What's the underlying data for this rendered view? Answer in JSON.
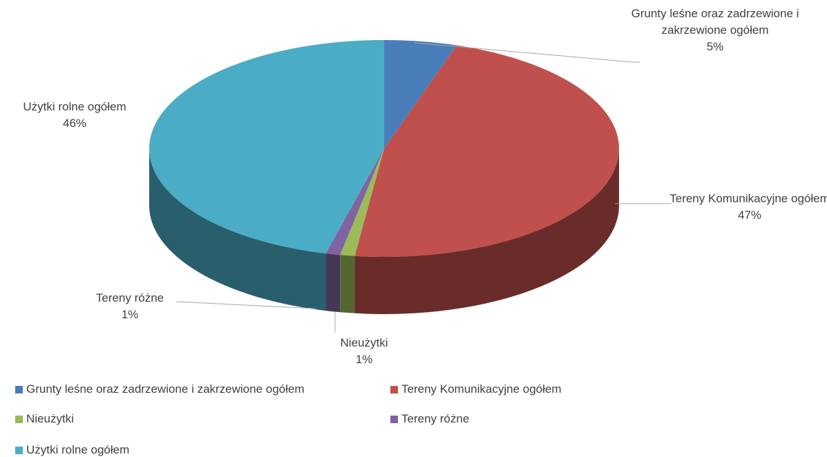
{
  "chart_data": {
    "type": "pie",
    "categories": [
      "Grunty leśne oraz zadrzewione i zakrzewione ogółem",
      "Tereny Komunikacyjne ogółem",
      "Nieużytki",
      "Tereny różne",
      "Użytki rolne ogółem"
    ],
    "values": [
      5,
      47,
      1,
      1,
      46
    ],
    "value_labels": [
      "5%",
      "47%",
      "1%",
      "1%",
      "46%"
    ],
    "colors": [
      "#4a7ebb",
      "#c0504d",
      "#9bbb59",
      "#8064a2",
      "#4bacc6"
    ],
    "legend": "bottom"
  }
}
